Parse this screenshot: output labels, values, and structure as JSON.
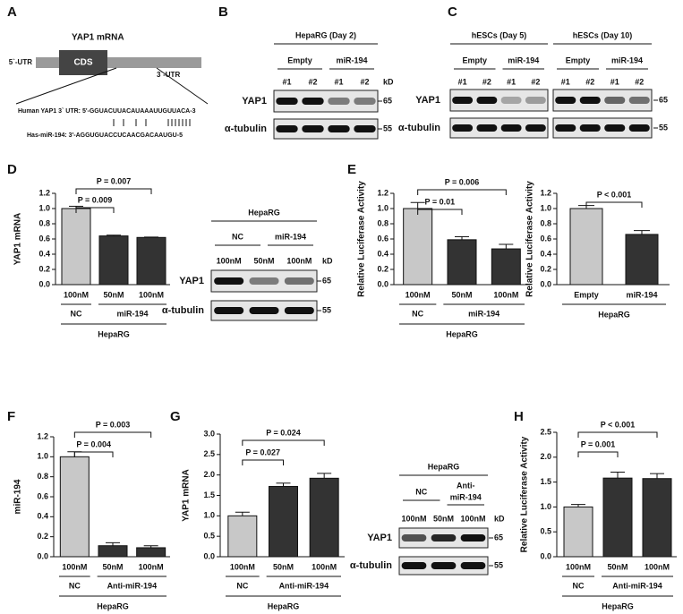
{
  "panel_labels": [
    "A",
    "B",
    "C",
    "D",
    "E",
    "F",
    "G",
    "H"
  ],
  "schematic": {
    "title": "YAP1 mRNA",
    "utr5": "5`-UTR",
    "cds": "CDS",
    "utr3": "3`-UTR",
    "human": "Human YAP1 3` UTR: 5'-GGUACUUACAUAAAUUGUUACA-3",
    "mir": "Has-miR-194: 3'-AGGUGUACCUCAACGACAAUGU-5"
  },
  "blot_panels": [
    {
      "gels": [
        {
          "title": "HepaRG (Day 2)",
          "groups": [
            "Empty",
            "miR-194"
          ],
          "lanes": [
            "#1",
            "#2",
            "#1",
            "#2"
          ]
        }
      ],
      "rows": [
        "YAP1",
        "α-tubulin"
      ],
      "markers": [
        65,
        55
      ],
      "unit": "kD"
    },
    {
      "gels": [
        {
          "title": "hESCs (Day 5)",
          "groups": [
            "Empty",
            "miR-194"
          ],
          "lanes": [
            "#1",
            "#2",
            "#1",
            "#2"
          ]
        },
        {
          "title": "hESCs (Day 10)",
          "groups": [
            "Empty",
            "miR-194"
          ],
          "lanes": [
            "#1",
            "#2",
            "#1",
            "#2"
          ]
        }
      ],
      "rows": [
        "YAP1",
        "α-tubulin"
      ],
      "markers": [
        65,
        55
      ]
    },
    {
      "gels": [
        {
          "title": "HepaRG",
          "groups": [
            "NC",
            "miR-194"
          ],
          "lanes": [
            "100nM",
            "50nM",
            "100nM"
          ]
        }
      ],
      "rows": [
        "YAP1",
        "α-tubulin"
      ],
      "markers": [
        65,
        55
      ],
      "unit": "kD"
    },
    {
      "gels": [
        {
          "title": "HepaRG",
          "groups": [
            "NC",
            [
              "Anti-",
              "miR-194"
            ]
          ],
          "lanes": [
            "100nM",
            "50nM",
            "100nM"
          ]
        }
      ],
      "rows": [
        "YAP1",
        "α-tubulin"
      ],
      "markers": [
        65,
        55
      ],
      "unit": "kD"
    }
  ],
  "chart_data": [
    {
      "type": "bar",
      "ylabel": "YAP1 mRNA",
      "categories": [
        "100nM",
        "50nM",
        "100nM"
      ],
      "values": [
        1.0,
        0.64,
        0.62
      ],
      "errors": [
        0.03,
        0.01,
        0.005
      ],
      "colors": [
        "#c8c8c8",
        "#333333",
        "#333333"
      ],
      "groups": [
        {
          "label": "NC",
          "bars": [
            0
          ]
        },
        {
          "label": "miR-194",
          "bars": [
            1,
            2
          ]
        }
      ],
      "xlabel": "HepaRG",
      "ylim": [
        0,
        1.2
      ],
      "yticks": [
        {
          "value": 0,
          "label": "0.0"
        },
        {
          "value": 0.2,
          "label": "0.2"
        },
        {
          "value": 0.4,
          "label": "0.4"
        },
        {
          "value": 0.6,
          "label": "0.6"
        },
        {
          "value": 0.8,
          "label": "0.8"
        },
        {
          "value": 1,
          "label": "1.0"
        },
        {
          "value": 1.2,
          "label": "1.2"
        }
      ],
      "annotations": [
        {
          "text": "P = 0.009",
          "bars": [
            0,
            1
          ]
        },
        {
          "text": "P = 0.007",
          "bars": [
            0,
            2
          ]
        }
      ]
    },
    {
      "type": "bar",
      "ylabel": "Relative Luciferase Activity",
      "categories": [
        "100nM",
        "50nM",
        "100nM"
      ],
      "values": [
        1.0,
        0.59,
        0.47
      ],
      "errors": [
        0.08,
        0.04,
        0.06
      ],
      "colors": [
        "#c8c8c8",
        "#333333",
        "#333333"
      ],
      "groups": [
        {
          "label": "NC",
          "bars": [
            0
          ]
        },
        {
          "label": "miR-194",
          "bars": [
            1,
            2
          ]
        }
      ],
      "xlabel": "HepaRG",
      "ylim": [
        0,
        1.2
      ],
      "yticks": [
        {
          "value": 0,
          "label": "0.0"
        },
        {
          "value": 0.2,
          "label": "0.2"
        },
        {
          "value": 0.4,
          "label": "0.4"
        },
        {
          "value": 0.6,
          "label": "0.6"
        },
        {
          "value": 0.8,
          "label": "0.8"
        },
        {
          "value": 1,
          "label": "1.0"
        },
        {
          "value": 1.2,
          "label": "1.2"
        }
      ],
      "annotations": [
        {
          "text": "P = 0.01",
          "bars": [
            0,
            1
          ]
        },
        {
          "text": "P = 0.006",
          "bars": [
            0,
            2
          ]
        }
      ]
    },
    {
      "type": "bar",
      "ylabel": "Relative Luciferase Activity",
      "categories": [
        "Empty",
        "miR-194"
      ],
      "values": [
        1.0,
        0.66
      ],
      "errors": [
        0.04,
        0.05
      ],
      "colors": [
        "#c8c8c8",
        "#333333"
      ],
      "xlabel": "HepaRG",
      "ylim": [
        0,
        1.2
      ],
      "yticks": [
        {
          "value": 0,
          "label": "0.0"
        },
        {
          "value": 0.2,
          "label": "0.2"
        },
        {
          "value": 0.4,
          "label": "0.4"
        },
        {
          "value": 0.6,
          "label": "0.6"
        },
        {
          "value": 0.8,
          "label": "0.8"
        },
        {
          "value": 1,
          "label": "1.0"
        },
        {
          "value": 1.2,
          "label": "1.2"
        }
      ],
      "annotations": [
        {
          "text": "P < 0.001",
          "bars": [
            0,
            1
          ]
        }
      ]
    },
    {
      "type": "bar",
      "ylabel": "miR-194",
      "categories": [
        "100nM",
        "50nM",
        "100nM"
      ],
      "values": [
        1.0,
        0.11,
        0.09
      ],
      "errors": [
        0.05,
        0.03,
        0.02
      ],
      "colors": [
        "#c8c8c8",
        "#333333",
        "#333333"
      ],
      "groups": [
        {
          "label": "NC",
          "bars": [
            0
          ]
        },
        {
          "label": "Anti-miR-194",
          "bars": [
            1,
            2
          ]
        }
      ],
      "xlabel": "HepaRG",
      "ylim": [
        0,
        1.2
      ],
      "yticks": [
        {
          "value": 0,
          "label": "0.0"
        },
        {
          "value": 0.2,
          "label": "0.2"
        },
        {
          "value": 0.4,
          "label": "0.4"
        },
        {
          "value": 0.6,
          "label": "0.6"
        },
        {
          "value": 0.8,
          "label": "0.8"
        },
        {
          "value": 1,
          "label": "1.0"
        },
        {
          "value": 1.2,
          "label": "1.2"
        }
      ],
      "annotations": [
        {
          "text": "P = 0.004",
          "bars": [
            0,
            1
          ]
        },
        {
          "text": "P = 0.003",
          "bars": [
            0,
            2
          ]
        }
      ]
    },
    {
      "type": "bar",
      "ylabel": "YAP1 mRNA",
      "categories": [
        "100nM",
        "50nM",
        "100nM"
      ],
      "values": [
        1.0,
        1.72,
        1.92
      ],
      "errors": [
        0.09,
        0.08,
        0.12
      ],
      "colors": [
        "#c8c8c8",
        "#333333",
        "#333333"
      ],
      "groups": [
        {
          "label": "NC",
          "bars": [
            0
          ]
        },
        {
          "label": "Anti-miR-194",
          "bars": [
            1,
            2
          ]
        }
      ],
      "xlabel": "HepaRG",
      "ylim": [
        0,
        3.0
      ],
      "yticks": [
        {
          "value": 0,
          "label": "0.0"
        },
        {
          "value": 0.5,
          "label": "0.5"
        },
        {
          "value": 1,
          "label": "1.0"
        },
        {
          "value": 1.5,
          "label": "1.5"
        },
        {
          "value": 2,
          "label": "2.0"
        },
        {
          "value": 2.5,
          "label": "2.5"
        },
        {
          "value": 3,
          "label": "3.0"
        }
      ],
      "annotations": [
        {
          "text": "P = 0.027",
          "bars": [
            0,
            1
          ]
        },
        {
          "text": "P = 0.024",
          "bars": [
            0,
            2
          ]
        }
      ]
    },
    {
      "type": "bar",
      "ylabel": "Relative Luciferase Activity",
      "categories": [
        "100nM",
        "50nM",
        "100nM"
      ],
      "values": [
        1.0,
        1.58,
        1.57
      ],
      "errors": [
        0.05,
        0.12,
        0.1
      ],
      "colors": [
        "#c8c8c8",
        "#333333",
        "#333333"
      ],
      "groups": [
        {
          "label": "NC",
          "bars": [
            0
          ]
        },
        {
          "label": "Anti-miR-194",
          "bars": [
            1,
            2
          ]
        }
      ],
      "xlabel": "HepaRG",
      "ylim": [
        0,
        2.5
      ],
      "yticks": [
        {
          "value": 0,
          "label": "0.0"
        },
        {
          "value": 0.5,
          "label": "0.5"
        },
        {
          "value": 1,
          "label": "1.0"
        },
        {
          "value": 1.5,
          "label": "1.5"
        },
        {
          "value": 2,
          "label": "2.0"
        },
        {
          "value": 2.5,
          "label": "2.5"
        }
      ],
      "annotations": [
        {
          "text": "P = 0.001",
          "bars": [
            0,
            1
          ]
        },
        {
          "text": "P < 0.001",
          "bars": [
            0,
            2
          ]
        }
      ]
    }
  ]
}
